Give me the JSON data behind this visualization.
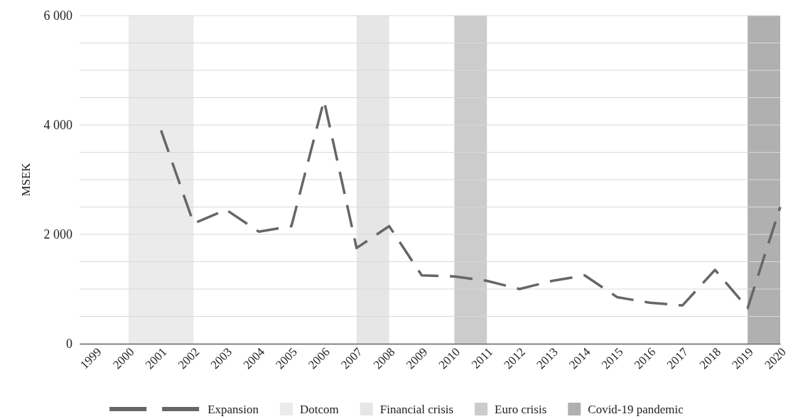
{
  "chart_data": {
    "type": "line",
    "ylabel": "MSEK",
    "x": [
      2001,
      2002,
      2003,
      2004,
      2005,
      2006,
      2007,
      2008,
      2009,
      2010,
      2011,
      2012,
      2013,
      2014,
      2015,
      2016,
      2017,
      2018,
      2019,
      2020
    ],
    "series": [
      {
        "name": "Expansion",
        "color": "#666666",
        "values": [
          3900,
          2200,
          2450,
          2050,
          2150,
          4450,
          1750,
          2150,
          1250,
          1230,
          1150,
          1000,
          1150,
          1250,
          850,
          750,
          700,
          1350,
          650,
          2500
        ]
      }
    ],
    "line_style": "dashed",
    "marker": "none",
    "xlim": [
      1998.5,
      2020
    ],
    "xticks": [
      1999,
      2000,
      2001,
      2002,
      2003,
      2004,
      2005,
      2006,
      2007,
      2008,
      2009,
      2010,
      2011,
      2012,
      2013,
      2014,
      2015,
      2016,
      2017,
      2018,
      2019,
      2020
    ],
    "ylim": [
      0,
      6000
    ],
    "yticks": [
      {
        "value": 0,
        "label": "0"
      },
      {
        "value": 500,
        "label": null
      },
      {
        "value": 1000,
        "label": null
      },
      {
        "value": 1500,
        "label": null
      },
      {
        "value": 2000,
        "label": "2 000"
      },
      {
        "value": 2500,
        "label": null
      },
      {
        "value": 3000,
        "label": null
      },
      {
        "value": 3500,
        "label": null
      },
      {
        "value": 4000,
        "label": "4 000"
      },
      {
        "value": 4500,
        "label": null
      },
      {
        "value": 5000,
        "label": null
      },
      {
        "value": 5500,
        "label": null
      },
      {
        "value": 6000,
        "label": "6 000"
      }
    ],
    "grid": "y",
    "legend": "bottom",
    "bands": [
      {
        "axis": "x",
        "from": 2000,
        "to": 2002,
        "label": "Dotcom",
        "color": "#ebebeb"
      },
      {
        "axis": "x",
        "from": 2007,
        "to": 2008,
        "label": "Financial crisis",
        "color": "#e6e6e6"
      },
      {
        "axis": "x",
        "from": 2010,
        "to": 2011,
        "label": "Euro crisis",
        "color": "#cccccc"
      },
      {
        "axis": "x",
        "from": 2019,
        "to": 2020,
        "label": "Covid-19 pandemic",
        "color": "#b0b0b0"
      }
    ]
  }
}
